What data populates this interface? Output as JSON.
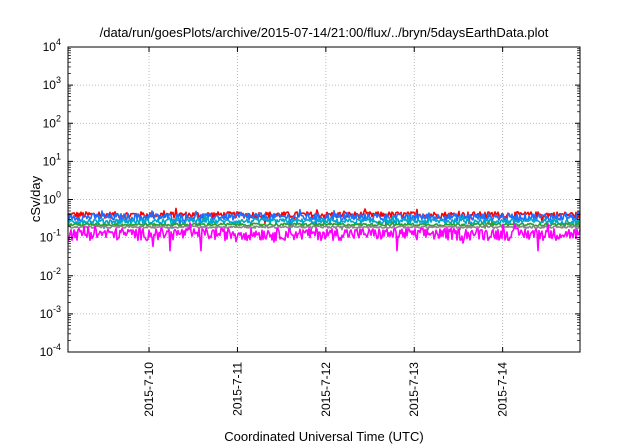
{
  "chart_data": {
    "type": "line",
    "title": "/data/run/goesPlots/archive/2015-07-14/21:00/flux/../bryn/5daysEarthData.plot",
    "xlabel": "Coordinated Universal Time (UTC)",
    "ylabel": "cSv/day",
    "yscale": "log",
    "ylim": [
      0.0001,
      10000
    ],
    "xlim": [
      "2015-07-09 02:00",
      "2015-07-14 21:00"
    ],
    "yticks": [
      {
        "base": "10",
        "exp": "-4"
      },
      {
        "base": "10",
        "exp": "-3"
      },
      {
        "base": "10",
        "exp": "-2"
      },
      {
        "base": "10",
        "exp": "-1"
      },
      {
        "base": "10",
        "exp": "0"
      },
      {
        "base": "10",
        "exp": "1"
      },
      {
        "base": "10",
        "exp": "2"
      },
      {
        "base": "10",
        "exp": "3"
      },
      {
        "base": "10",
        "exp": "4"
      }
    ],
    "xticks": [
      "2015-7-10",
      "2015-7-11",
      "2015-7-12",
      "2015-7-13",
      "2015-7-14"
    ],
    "xtick_times": [
      "2015-07-10 00:00",
      "2015-07-11 00:00",
      "2015-07-12 00:00",
      "2015-07-13 00:00",
      "2015-07-14 00:00"
    ],
    "grid": true,
    "series": [
      {
        "color": "#ff0000",
        "level": 0.4,
        "spread": 0.12
      },
      {
        "color": "#1f6fff",
        "level": 0.35,
        "spread": 0.14
      },
      {
        "color": "#00aacc",
        "level": 0.27,
        "spread": 0.1
      },
      {
        "color": "#2ca02c",
        "level": 0.22,
        "spread": 0.05
      },
      {
        "color": "#888888",
        "level": 0.19,
        "spread": 0.04
      },
      {
        "color": "#ff00ff",
        "level": 0.13,
        "spread": 0.22
      }
    ]
  }
}
